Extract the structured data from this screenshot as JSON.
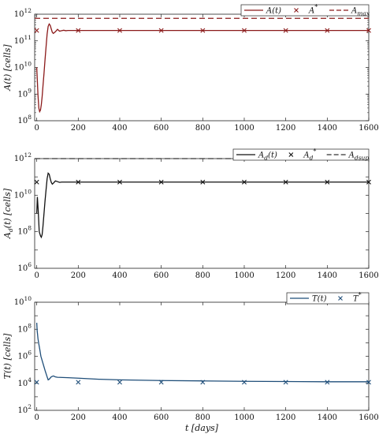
{
  "chart_data": [
    {
      "type": "line",
      "ylabel": "A(t) [cells]",
      "xlabel": "",
      "xlim": [
        -10,
        1600
      ],
      "ylim": [
        100000000.0,
        1000000000000.0
      ],
      "yscale": "log",
      "xticks": [
        "0",
        "200",
        "400",
        "600",
        "800",
        "1000",
        "1200",
        "1400",
        "1600"
      ],
      "yticks": [
        "10^8",
        "10^9",
        "10^10",
        "10^11",
        "10^12"
      ],
      "legend": {
        "position": "top-right",
        "entries": [
          "A(t)",
          "A*",
          "A_max"
        ]
      },
      "colors": {
        "line": "#8b1a1a",
        "marker": "#8b1a1a",
        "dashed": "#8b1a1a"
      },
      "series": [
        {
          "name": "A(t)",
          "style": "solid",
          "x": [
            0,
            3,
            6,
            10,
            14,
            18,
            22,
            26,
            30,
            35,
            40,
            45,
            50,
            55,
            60,
            65,
            70,
            75,
            80,
            90,
            100,
            110,
            120,
            130,
            140,
            150,
            170,
            200,
            300,
            600,
            1000,
            1600
          ],
          "y": [
            10000000000.0,
            3000000000.0,
            900000000.0,
            300000000.0,
            220000000.0,
            250000000.0,
            400000000.0,
            800000000.0,
            2000000000.0,
            6000000000.0,
            20000000000.0,
            60000000000.0,
            180000000000.0,
            350000000000.0,
            430000000000.0,
            380000000000.0,
            280000000000.0,
            210000000000.0,
            190000000000.0,
            220000000000.0,
            270000000000.0,
            230000000000.0,
            240000000000.0,
            250000000000.0,
            240000000000.0,
            245000000000.0,
            245000000000.0,
            245000000000.0,
            245000000000.0,
            245000000000.0,
            245000000000.0,
            245000000000.0
          ]
        },
        {
          "name": "A*",
          "style": "marker",
          "x": [
            0,
            200,
            400,
            600,
            800,
            1000,
            1200,
            1400,
            1600
          ],
          "y": [
            245000000000.0,
            245000000000.0,
            245000000000.0,
            245000000000.0,
            245000000000.0,
            245000000000.0,
            245000000000.0,
            245000000000.0,
            245000000000.0
          ]
        },
        {
          "name": "A_max",
          "style": "dashed",
          "x": [
            -10,
            1600
          ],
          "y": [
            700000000000.0,
            700000000000.0
          ]
        }
      ]
    },
    {
      "type": "line",
      "ylabel": "A_d(t) [cells]",
      "xlabel": "",
      "xlim": [
        -10,
        1600
      ],
      "ylim": [
        1000000.0,
        1000000000000.0
      ],
      "yscale": "log",
      "xticks": [
        "0",
        "200",
        "400",
        "600",
        "800",
        "1000",
        "1200",
        "1400",
        "1600"
      ],
      "yticks": [
        "10^6",
        "10^8",
        "10^10",
        "10^12"
      ],
      "legend": {
        "position": "top-right",
        "entries": [
          "A_d(t)",
          "A_d*",
          "A_dsup"
        ]
      },
      "colors": {
        "line": "#111111",
        "marker": "#111111",
        "dashed": "#333333"
      },
      "series": [
        {
          "name": "A_d(t)",
          "style": "solid",
          "x": [
            0,
            3,
            7,
            12,
            18,
            22,
            26,
            30,
            35,
            40,
            45,
            50,
            55,
            60,
            65,
            70,
            75,
            80,
            90,
            100,
            110,
            120,
            130,
            140,
            160,
            200,
            600,
            1000,
            1600
          ],
          "y": [
            1000000000.0,
            8000000000.0,
            1500000000.0,
            100000000.0,
            60000000.0,
            50000000.0,
            70000000.0,
            200000000.0,
            1000000000.0,
            5000000000.0,
            20000000000.0,
            80000000000.0,
            160000000000.0,
            140000000000.0,
            80000000000.0,
            50000000000.0,
            40000000000.0,
            45000000000.0,
            60000000000.0,
            55000000000.0,
            50000000000.0,
            52000000000.0,
            52000000000.0,
            52000000000.0,
            52000000000.0,
            52000000000.0,
            52000000000.0,
            52000000000.0,
            52000000000.0
          ]
        },
        {
          "name": "A_d*",
          "style": "marker",
          "x": [
            0,
            200,
            400,
            600,
            800,
            1000,
            1200,
            1400,
            1600
          ],
          "y": [
            52000000000.0,
            52000000000.0,
            52000000000.0,
            52000000000.0,
            52000000000.0,
            52000000000.0,
            52000000000.0,
            52000000000.0,
            52000000000.0
          ]
        },
        {
          "name": "A_dsup",
          "style": "dashed",
          "x": [
            -10,
            1600
          ],
          "y": [
            1000000000000.0,
            1000000000000.0
          ]
        }
      ]
    },
    {
      "type": "line",
      "ylabel": "T(t) [cells]",
      "xlabel": "t [days]",
      "xlim": [
        -10,
        1600
      ],
      "ylim": [
        100.0,
        10000000000.0
      ],
      "yscale": "log",
      "xticks": [
        "0",
        "200",
        "400",
        "600",
        "800",
        "1000",
        "1200",
        "1400",
        "1600"
      ],
      "yticks": [
        "10^2",
        "10^4",
        "10^6",
        "10^8",
        "10^10"
      ],
      "legend": {
        "position": "top-right",
        "entries": [
          "T(t)",
          "T*"
        ]
      },
      "colors": {
        "line": "#1f4e79",
        "marker": "#1f4e79"
      },
      "series": [
        {
          "name": "T(t)",
          "style": "solid",
          "x": [
            0,
            2,
            4,
            6,
            10,
            15,
            20,
            30,
            40,
            50,
            55,
            60,
            70,
            80,
            90,
            100,
            150,
            200,
            300,
            400,
            600,
            800,
            1000,
            1200,
            1400,
            1600
          ],
          "y": [
            300000000.0,
            80000000.0,
            40000000.0,
            20000000.0,
            8000000.0,
            3000000.0,
            1000000.0,
            300000.0,
            90000.0,
            30000.0,
            18000.0,
            20000.0,
            30000.0,
            35000.0,
            30000.0,
            28000.0,
            26000.0,
            24000.0,
            20000.0,
            18000.0,
            16000.0,
            15000.0,
            14000.0,
            13500.0,
            13000.0,
            13000.0
          ]
        },
        {
          "name": "T*",
          "style": "marker",
          "x": [
            0,
            200,
            400,
            600,
            800,
            1000,
            1200,
            1400,
            1600
          ],
          "y": [
            12000.0,
            12000.0,
            12000.0,
            12000.0,
            12000.0,
            12000.0,
            12000.0,
            12000.0,
            12000.0
          ]
        }
      ]
    }
  ]
}
